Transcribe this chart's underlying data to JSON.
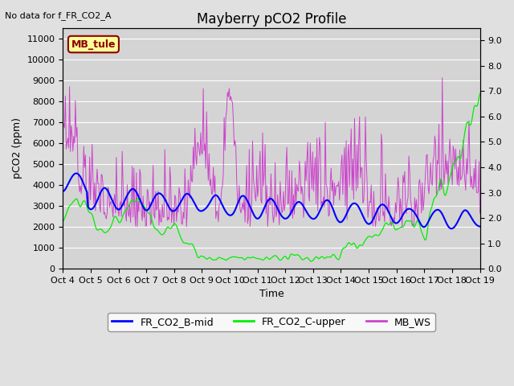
{
  "title": "Mayberry pCO2 Profile",
  "xlabel": "Time",
  "ylabel_left": "pCO2 (ppm)",
  "no_data_text": "No data for f_FR_CO2_A",
  "mb_tule_label": "MB_tule",
  "ylim_left": [
    0,
    11500
  ],
  "ylim_right": [
    0.0,
    9.5
  ],
  "yticks_left": [
    0,
    1000,
    2000,
    3000,
    4000,
    5000,
    6000,
    7000,
    8000,
    9000,
    10000,
    11000
  ],
  "yticks_right": [
    0.0,
    1.0,
    2.0,
    3.0,
    4.0,
    5.0,
    6.0,
    7.0,
    8.0,
    9.0
  ],
  "xtick_labels": [
    "Oct 4",
    "Oct 5",
    "Oct 6",
    "Oct 7",
    "Oct 8",
    "Oct 9",
    "Oct 10",
    "Oct 11",
    "Oct 12",
    "Oct 13",
    "Oct 14",
    "Oct 15",
    "Oct 16",
    "Oct 17",
    "Oct 18",
    "Oct 19"
  ],
  "legend_entries": [
    "FR_CO2_B-mid",
    "FR_CO2_C-upper",
    "MB_WS"
  ],
  "line_colors": [
    "blue",
    "#00ee00",
    "#cc44cc"
  ],
  "background_color": "#e0e0e0",
  "plot_bg_color": "#d4d4d4",
  "title_fontsize": 12,
  "axis_fontsize": 9,
  "tick_fontsize": 8,
  "legend_fontsize": 9
}
